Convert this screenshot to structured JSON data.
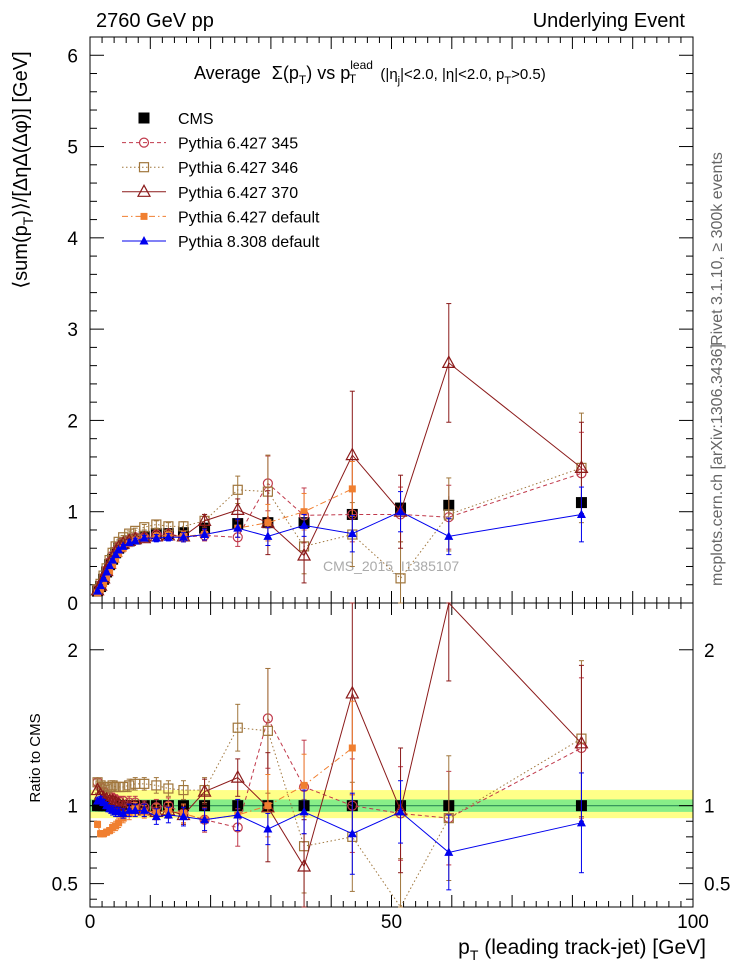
{
  "header": {
    "left": "2760 GeV pp",
    "right": "Underlying Event"
  },
  "title": {
    "prefix": "Average",
    "sigma": "Σ(p",
    "sub_t": "T",
    "close": ")",
    "vs": " vs p",
    "sup_lead": "lead",
    "sub_t2": "T",
    "cuts": " (|η",
    "sub_j": "j",
    "cuts2": "|<2.0, |η|<2.0, p",
    "sub_t3": "T",
    "cuts3": ">0.5)"
  },
  "side_labels": {
    "rivet": "Rivet 3.1.10, ≥ 300k events",
    "mcplots": "mcplots.cern.ch [arXiv:1306.3436]"
  },
  "watermark": "CMS_2015_I1385107",
  "axes": {
    "ylabel_main": "⟨sum(p_T)⟩/[ΔηΔ(Δφ)] [GeV]",
    "ylabel_main_parts": [
      "⟨sum(p",
      "T",
      ")⟩/[ΔηΔ(Δφ)] [GeV]"
    ],
    "ylabel_ratio": "Ratio to CMS",
    "xlabel_parts": [
      "p",
      "T",
      " (leading track-jet) [GeV]"
    ],
    "xlim": [
      0,
      100
    ],
    "main_ylim": [
      0,
      6.2
    ],
    "ratio_ylim": [
      0.35,
      2.3
    ],
    "x_ticks": [
      "0",
      "50",
      "100"
    ],
    "main_y_ticks": [
      "0",
      "1",
      "2",
      "3",
      "4",
      "5",
      "6"
    ],
    "ratio_y_ticks": [
      "0.5",
      "1",
      "2"
    ]
  },
  "legend": [
    {
      "name": "CMS",
      "color": "#000000",
      "marker": "square-filled",
      "line": "none"
    },
    {
      "name": "Pythia 6.427 345",
      "color": "#c0394b",
      "marker": "circle-open",
      "line": "dashed"
    },
    {
      "name": "Pythia 6.427 346",
      "color": "#a0763c",
      "marker": "square-open",
      "line": "dotted"
    },
    {
      "name": "Pythia 6.427 370",
      "color": "#8b1a1a",
      "marker": "triangle-open",
      "line": "solid"
    },
    {
      "name": "Pythia 6.427 default",
      "color": "#f07f30",
      "marker": "square-filled-small",
      "line": "dashdot"
    },
    {
      "name": "Pythia 8.308 default",
      "color": "#0000ee",
      "marker": "triangle-filled",
      "line": "solid"
    }
  ],
  "chart_data": {
    "type": "scatter",
    "x": [
      1.25,
      1.75,
      2.25,
      2.75,
      3.25,
      3.75,
      4.25,
      4.75,
      5.5,
      6.5,
      7.5,
      9,
      11,
      13,
      15.5,
      19,
      24.5,
      29.5,
      35.5,
      43.5,
      51.5,
      59.5,
      81.5
    ],
    "series": [
      {
        "name": "CMS",
        "y": [
          0.13,
          0.18,
          0.26,
          0.34,
          0.42,
          0.48,
          0.55,
          0.6,
          0.65,
          0.68,
          0.7,
          0.73,
          0.76,
          0.76,
          0.77,
          0.82,
          0.87,
          0.88,
          0.88,
          0.97,
          1.04,
          1.07,
          1.1
        ],
        "err": [
          0.02,
          0.02,
          0.02,
          0.02,
          0.02,
          0.02,
          0.02,
          0.02,
          0.02,
          0.02,
          0.02,
          0.02,
          0.02,
          0.02,
          0.03,
          0.04,
          0.05,
          0.06,
          0.07,
          0.08,
          0.09,
          0.1,
          0.1
        ]
      },
      {
        "name": "Pythia 6.427 345",
        "y": [
          0.15,
          0.2,
          0.28,
          0.36,
          0.45,
          0.52,
          0.57,
          0.62,
          0.67,
          0.69,
          0.72,
          0.72,
          0.75,
          0.76,
          0.72,
          0.74,
          0.72,
          1.31,
          0.96,
          0.97,
          0.97,
          0.94,
          1.42
        ],
        "err": [
          0.01,
          0.01,
          0.01,
          0.01,
          0.01,
          0.02,
          0.02,
          0.02,
          0.02,
          0.03,
          0.03,
          0.03,
          0.04,
          0.04,
          0.05,
          0.06,
          0.1,
          0.3,
          0.3,
          0.3,
          0.3,
          0.35,
          0.45
        ]
      },
      {
        "name": "Pythia 6.427 346",
        "y": [
          0.15,
          0.21,
          0.3,
          0.38,
          0.47,
          0.55,
          0.62,
          0.67,
          0.72,
          0.76,
          0.79,
          0.83,
          0.86,
          0.84,
          0.84,
          0.9,
          1.24,
          1.22,
          0.62,
          0.75,
          0.27,
          0.97,
          1.48
        ],
        "err": [
          0.01,
          0.01,
          0.01,
          0.01,
          0.01,
          0.02,
          0.02,
          0.02,
          0.02,
          0.03,
          0.03,
          0.03,
          0.04,
          0.04,
          0.05,
          0.07,
          0.15,
          0.4,
          0.3,
          0.35,
          0.4,
          0.4,
          0.6
        ]
      },
      {
        "name": "Pythia 6.427 370",
        "y": [
          0.14,
          0.19,
          0.27,
          0.35,
          0.43,
          0.5,
          0.56,
          0.61,
          0.65,
          0.68,
          0.7,
          0.71,
          0.73,
          0.74,
          0.73,
          0.9,
          1.02,
          0.88,
          0.52,
          1.62,
          1.0,
          2.63,
          1.48
        ],
        "err": [
          0.01,
          0.01,
          0.01,
          0.01,
          0.01,
          0.02,
          0.02,
          0.02,
          0.02,
          0.03,
          0.03,
          0.03,
          0.04,
          0.04,
          0.05,
          0.07,
          0.12,
          0.35,
          0.3,
          0.7,
          0.4,
          0.65,
          0.5
        ]
      },
      {
        "name": "Pythia 6.427 default",
        "y": [
          0.11,
          0.15,
          0.21,
          0.28,
          0.35,
          0.42,
          0.48,
          0.54,
          0.6,
          0.65,
          0.69,
          0.71,
          0.73,
          0.74,
          0.73,
          0.75,
          0.82,
          0.88,
          1.0,
          1.25,
          null,
          null,
          null
        ],
        "err": [
          0.01,
          0.01,
          0.01,
          0.01,
          0.01,
          0.02,
          0.02,
          0.02,
          0.02,
          0.03,
          0.03,
          0.03,
          0.04,
          0.04,
          0.05,
          0.06,
          0.1,
          0.2,
          0.2,
          0.3,
          0,
          0,
          0
        ]
      },
      {
        "name": "Pythia 8.308 default",
        "y": [
          0.13,
          0.19,
          0.27,
          0.34,
          0.41,
          0.47,
          0.53,
          0.58,
          0.62,
          0.66,
          0.68,
          0.71,
          0.71,
          0.72,
          0.72,
          0.75,
          0.82,
          0.73,
          0.85,
          0.76,
          1.0,
          0.73,
          0.97
        ],
        "err": [
          0.01,
          0.01,
          0.01,
          0.01,
          0.01,
          0.02,
          0.02,
          0.02,
          0.02,
          0.03,
          0.03,
          0.03,
          0.04,
          0.04,
          0.05,
          0.06,
          0.1,
          0.1,
          0.12,
          0.2,
          0.22,
          0.2,
          0.3
        ]
      }
    ],
    "ratio_series": [
      {
        "name": "CMS",
        "y": [
          1,
          1,
          1,
          1,
          1,
          1,
          1,
          1,
          1,
          1,
          1,
          1,
          1,
          1,
          1,
          1,
          1,
          1,
          1,
          1,
          1,
          1,
          1
        ]
      },
      {
        "name": "Pythia 6.427 345",
        "y": [
          1.15,
          1.12,
          1.09,
          1.07,
          1.06,
          1.05,
          1.04,
          1.03,
          1.03,
          1.02,
          1.02,
          0.99,
          0.99,
          1.0,
          0.95,
          0.91,
          0.86,
          1.56,
          1.12,
          1.0,
          0.95,
          0.92,
          1.37
        ],
        "err": [
          0.02,
          0.02,
          0.02,
          0.02,
          0.02,
          0.03,
          0.03,
          0.03,
          0.03,
          0.04,
          0.04,
          0.04,
          0.05,
          0.05,
          0.06,
          0.08,
          0.12,
          0.32,
          0.3,
          0.3,
          0.3,
          0.3,
          0.45
        ]
      },
      {
        "name": "Pythia 6.427 346",
        "y": [
          1.15,
          1.13,
          1.12,
          1.11,
          1.12,
          1.13,
          1.12,
          1.12,
          1.12,
          1.13,
          1.14,
          1.14,
          1.13,
          1.11,
          1.1,
          1.1,
          1.5,
          1.48,
          0.74,
          0.8,
          0.26,
          0.92,
          1.43
        ],
        "err": [
          0.02,
          0.02,
          0.02,
          0.02,
          0.02,
          0.03,
          0.03,
          0.03,
          0.03,
          0.04,
          0.04,
          0.04,
          0.05,
          0.05,
          0.06,
          0.08,
          0.15,
          0.4,
          0.3,
          0.35,
          0.4,
          0.4,
          0.5
        ]
      },
      {
        "name": "Pythia 6.427 370",
        "y": [
          1.1,
          1.07,
          1.05,
          1.04,
          1.03,
          1.03,
          1.02,
          1.01,
          1.0,
          0.99,
          0.99,
          0.97,
          0.96,
          0.97,
          0.94,
          1.09,
          1.18,
          0.99,
          0.61,
          1.72,
          0.97,
          2.4,
          1.4
        ],
        "err": [
          0.02,
          0.02,
          0.02,
          0.02,
          0.02,
          0.03,
          0.03,
          0.03,
          0.03,
          0.04,
          0.04,
          0.04,
          0.05,
          0.05,
          0.06,
          0.08,
          0.12,
          0.35,
          0.3,
          0.65,
          0.4,
          0.6,
          0.5
        ]
      },
      {
        "name": "Pythia 6.427 default",
        "y": [
          0.88,
          0.82,
          0.82,
          0.83,
          0.84,
          0.86,
          0.87,
          0.89,
          0.92,
          0.95,
          0.98,
          0.96,
          0.96,
          0.97,
          0.95,
          0.91,
          0.94,
          1.0,
          1.13,
          1.37,
          null,
          null,
          null
        ],
        "err": [
          0.02,
          0.02,
          0.02,
          0.02,
          0.02,
          0.03,
          0.03,
          0.03,
          0.03,
          0.04,
          0.04,
          0.04,
          0.05,
          0.05,
          0.06,
          0.07,
          0.1,
          0.2,
          0.2,
          0.3,
          0,
          0,
          0
        ]
      },
      {
        "name": "Pythia 8.308 default",
        "y": [
          1.03,
          1.04,
          1.02,
          1.0,
          0.98,
          0.97,
          0.96,
          0.96,
          0.95,
          0.97,
          0.97,
          0.97,
          0.93,
          0.94,
          0.93,
          0.91,
          0.94,
          0.85,
          0.96,
          0.82,
          0.96,
          0.7,
          0.89
        ],
        "err": [
          0.02,
          0.02,
          0.02,
          0.02,
          0.02,
          0.03,
          0.03,
          0.03,
          0.03,
          0.04,
          0.04,
          0.04,
          0.05,
          0.05,
          0.06,
          0.07,
          0.1,
          0.1,
          0.14,
          0.26,
          0.2,
          0.24,
          0.32
        ]
      }
    ],
    "ratio_band": {
      "green": [
        0.96,
        1.04
      ],
      "yellow": [
        0.92,
        1.1
      ]
    },
    "legend_position": "top-left",
    "grid": false
  }
}
